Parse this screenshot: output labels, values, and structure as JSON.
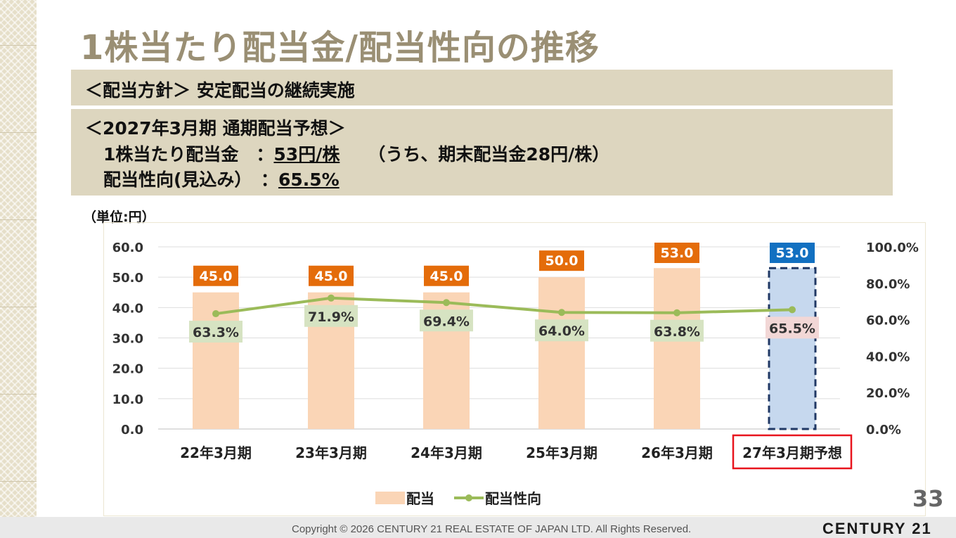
{
  "title": "1株当たり配当金/配当性向の推移",
  "policy": "＜配当方針＞ 安定配当の継続実施",
  "forecast": {
    "heading": "＜2027年3月期 通期配当予想＞",
    "dps_label": "1株当たり配当金　：",
    "dps_value": "53円/株",
    "dps_note": "（うち、期末配当金28円/株）",
    "payout_label": "配当性向(見込み）　：",
    "payout_value": "65.5%"
  },
  "unit_label": "（単位:円）",
  "chart_data": {
    "type": "bar",
    "categories": [
      "22年3月期",
      "23年3月期",
      "24年3月期",
      "25年3月期",
      "26年3月期",
      "27年3月期予想"
    ],
    "series": [
      {
        "name": "配当",
        "type": "bar",
        "axis": "left",
        "values": [
          45.0,
          45.0,
          45.0,
          50.0,
          53.0,
          53.0
        ],
        "labels": [
          "45.0",
          "45.0",
          "45.0",
          "50.0",
          "53.0",
          "53.0"
        ]
      },
      {
        "name": "配当性向",
        "type": "line",
        "axis": "right",
        "values": [
          63.3,
          71.9,
          69.4,
          64.0,
          63.8,
          65.5
        ],
        "labels": [
          "63.3%",
          "71.9%",
          "69.4%",
          "64.0%",
          "63.8%",
          "65.5%"
        ]
      }
    ],
    "y_left": {
      "min": 0,
      "max": 60,
      "ticks": [
        "0.0",
        "10.0",
        "20.0",
        "30.0",
        "40.0",
        "50.0",
        "60.0"
      ]
    },
    "y_right": {
      "min": 0,
      "max": 100,
      "ticks": [
        "0.0%",
        "20.0%",
        "40.0%",
        "60.0%",
        "80.0%",
        "100.0%"
      ]
    },
    "forecast_index": 5,
    "legend_position": "bottom",
    "grid": true
  },
  "colors": {
    "bar": "#fad5b6",
    "bar_forecast": "#c6d8ee",
    "bar_label": "#e46c0a",
    "bar_label_forecast": "#1270c1",
    "line": "#9bbb59",
    "line_label": "#d6e3c2",
    "line_label_forecast": "#f2d7d6",
    "highlight_border": "#e8141d"
  },
  "page_number": "33",
  "copyright": "Copyright © 2026 CENTURY 21 REAL ESTATE OF JAPAN LTD. All Rights Reserved.",
  "brand": "CENTURY 21"
}
